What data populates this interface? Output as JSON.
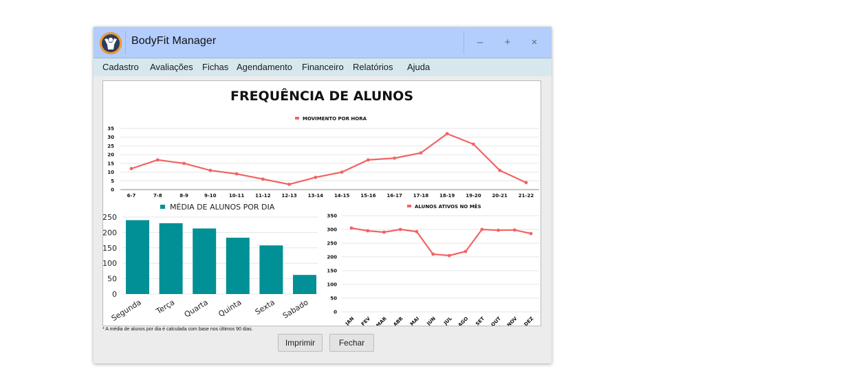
{
  "window": {
    "title": "BodyFit Manager",
    "controls": {
      "minimize": "–",
      "maximize": "+",
      "close": "×"
    }
  },
  "menu": [
    "Cadastro",
    "Avaliações",
    "Fichas",
    "Agendamento",
    "Financeiro",
    "Relatórios",
    "Ajuda"
  ],
  "report": {
    "title": "FREQUÊNCIA DE ALUNOS",
    "footnote": "* A média de alunos por dia é calculada com base nos últimos 90 dias."
  },
  "buttons": {
    "print": "Imprimir",
    "close": "Fechar"
  },
  "colors": {
    "line": "#f26363",
    "bar": "#009095",
    "titlebar": "#b3cdfc",
    "menubar": "#d6e8ee"
  },
  "chart_data": [
    {
      "type": "line",
      "title": "",
      "series": [
        {
          "name": "MOVIMENTO POR HORA",
          "values": [
            12,
            17,
            15,
            11,
            9,
            6,
            3,
            7,
            10,
            17,
            18,
            21,
            32,
            26,
            11,
            4
          ]
        }
      ],
      "categories": [
        "6-7",
        "7-8",
        "8-9",
        "9-10",
        "10-11",
        "11-12",
        "12-13",
        "13-14",
        "14-15",
        "15-16",
        "16-17",
        "17-18",
        "18-19",
        "19-20",
        "20-21",
        "21-22"
      ],
      "yticks": [
        0,
        5,
        10,
        15,
        20,
        25,
        30,
        35
      ],
      "ylim": [
        0,
        35
      ],
      "legend": "top-center",
      "grid": true
    },
    {
      "type": "bar",
      "series": [
        {
          "name": "MÉDIA DE ALUNOS POR DIA",
          "values": [
            240,
            230,
            213,
            183,
            158,
            62
          ]
        }
      ],
      "categories": [
        "Segunda",
        "Terça",
        "Quarta",
        "Quinta",
        "Sexta",
        "Sabado"
      ],
      "yticks": [
        0,
        50,
        100,
        150,
        200,
        250
      ],
      "ylim": [
        0,
        250
      ],
      "legend": "top-center",
      "grid": true
    },
    {
      "type": "line",
      "series": [
        {
          "name": "ALUNOS ATIVOS NO MÊS",
          "values": [
            305,
            295,
            290,
            300,
            292,
            210,
            205,
            220,
            300,
            297,
            298,
            285
          ]
        }
      ],
      "categories": [
        "JAN",
        "FEV",
        "MAR",
        "ABR",
        "MAI",
        "JUN",
        "JUL",
        "AGO",
        "SET",
        "OUT",
        "NOV",
        "DEZ"
      ],
      "yticks": [
        0,
        50,
        100,
        150,
        200,
        250,
        300,
        350
      ],
      "ylim": [
        0,
        350
      ],
      "legend": "top-center",
      "grid": true
    }
  ]
}
